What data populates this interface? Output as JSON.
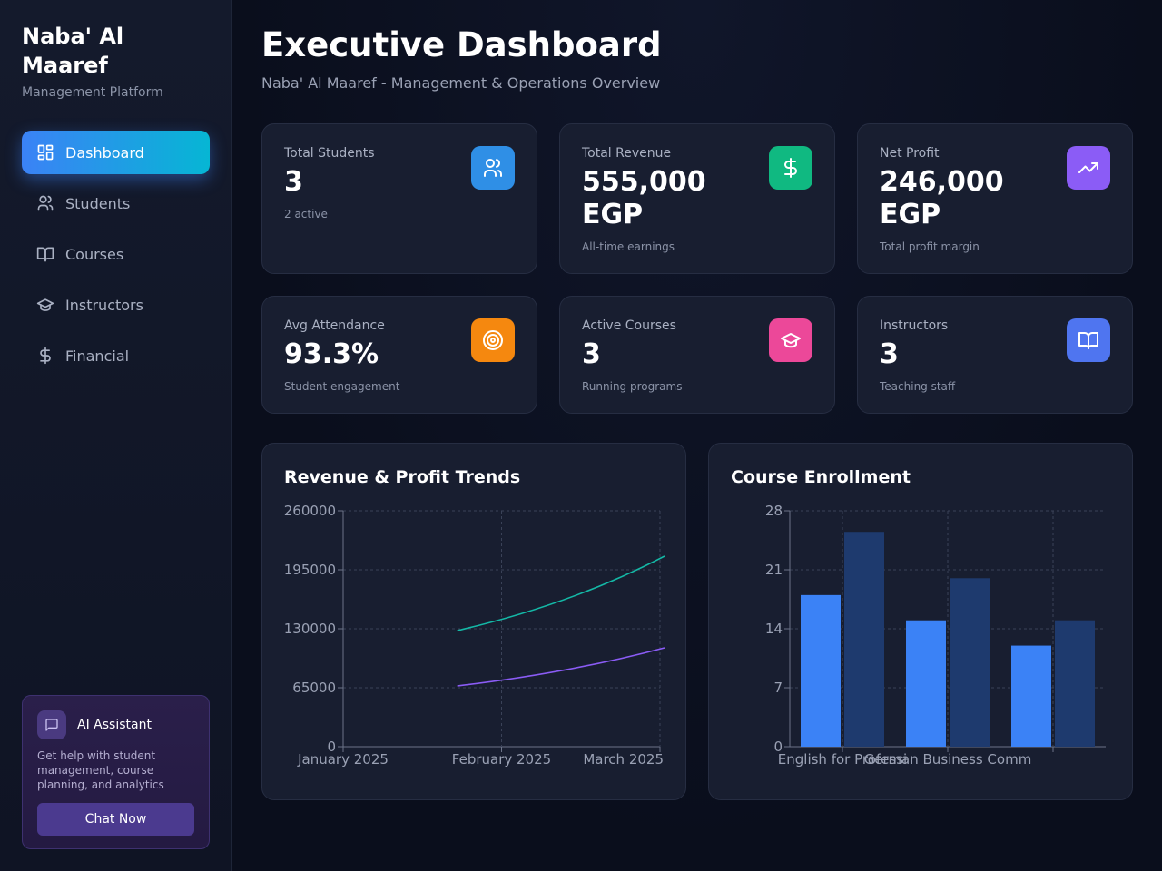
{
  "sidebar": {
    "brand_title": "Naba' Al Maaref",
    "brand_subtitle": "Management Platform",
    "nav": [
      {
        "label": "Dashboard",
        "icon": "dashboard-icon",
        "active": true
      },
      {
        "label": "Students",
        "icon": "users-icon",
        "active": false
      },
      {
        "label": "Courses",
        "icon": "book-icon",
        "active": false
      },
      {
        "label": "Instructors",
        "icon": "graduation-cap-icon",
        "active": false
      },
      {
        "label": "Financial",
        "icon": "dollar-icon",
        "active": false
      }
    ],
    "assistant": {
      "title": "AI Assistant",
      "description": "Get help with student management, course planning, and analytics",
      "button_label": "Chat Now"
    }
  },
  "header": {
    "title": "Executive Dashboard",
    "subtitle": "Naba' Al Maaref - Management & Operations Overview"
  },
  "stats": [
    {
      "label": "Total Students",
      "value": "3",
      "note": "2 active",
      "icon": "users-icon",
      "color": "#2f8fe6"
    },
    {
      "label": "Total Revenue",
      "value": "555,000 EGP",
      "note": "All-time earnings",
      "icon": "dollar-icon",
      "color": "#10b981"
    },
    {
      "label": "Net Profit",
      "value": "246,000 EGP",
      "note": "Total profit margin",
      "icon": "trending-up-icon",
      "color": "#8b5cf6"
    },
    {
      "label": "Avg Attendance",
      "value": "93.3%",
      "note": "Student engagement",
      "icon": "target-icon",
      "color": "#f5880f"
    },
    {
      "label": "Active Courses",
      "value": "3",
      "note": "Running programs",
      "icon": "graduation-cap-icon",
      "color": "#ec4899"
    },
    {
      "label": "Instructors",
      "value": "3",
      "note": "Teaching staff",
      "icon": "book-icon",
      "color": "#4f75f0"
    }
  ],
  "chart_data": [
    {
      "type": "line",
      "title": "Revenue & Profit Trends",
      "categories": [
        "January 2025",
        "February 2025",
        "March 2025"
      ],
      "yticks": [
        0,
        65000,
        130000,
        195000,
        260000
      ],
      "ylim": [
        0,
        260000
      ],
      "grid": true,
      "series": [
        {
          "color": "#14b8a6",
          "values": [
            null,
            128000,
            210000
          ]
        },
        {
          "color": "#8b5cf6",
          "values": [
            null,
            67000,
            109000
          ]
        }
      ]
    },
    {
      "type": "bar",
      "title": "Course Enrollment",
      "categories": [
        "English for Professi",
        "German Business Comm",
        ""
      ],
      "yticks": [
        0,
        7,
        14,
        21,
        28
      ],
      "ylim": [
        0,
        28
      ],
      "grid": true,
      "series": [
        {
          "color": "#3b82f6",
          "values": [
            18,
            15,
            12
          ]
        },
        {
          "color": "#1e3a6e",
          "values": [
            25.5,
            20,
            15
          ]
        }
      ]
    }
  ]
}
